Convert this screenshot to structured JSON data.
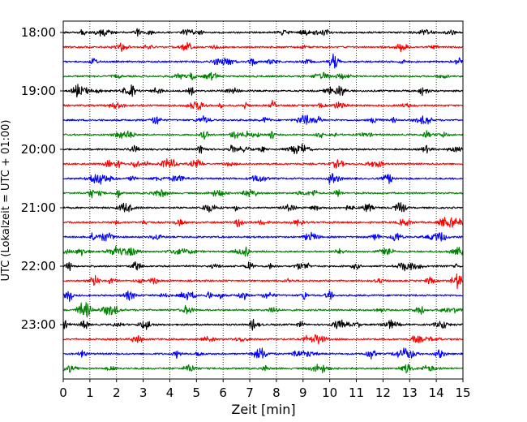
{
  "chart_data": {
    "type": "line",
    "title": "",
    "xlabel": "Zeit  [min]",
    "ylabel": "UTC (Lokalzeit = UTC + 01:00)",
    "xlim": [
      0,
      15
    ],
    "x_ticks": [
      0,
      1,
      2,
      3,
      4,
      5,
      6,
      7,
      8,
      9,
      10,
      11,
      12,
      13,
      14,
      15
    ],
    "x_tick_labels": [
      "0",
      "1",
      "2",
      "3",
      "4",
      "5",
      "6",
      "7",
      "8",
      "9",
      "10",
      "11",
      "12",
      "13",
      "14",
      "15"
    ],
    "y_tick_labels": [
      "18:00",
      "19:00",
      "20:00",
      "21:00",
      "22:00",
      "23:00"
    ],
    "y_tick_traces": [
      0,
      4,
      8,
      12,
      16,
      20
    ],
    "trace_count": 24,
    "trace_interval_min": 15,
    "trace_colors": [
      "#000000",
      "#ff0000",
      "#0000ff",
      "#008000"
    ],
    "grid": {
      "x": true,
      "y": false,
      "style": "dotted"
    },
    "series": [
      {
        "start": "18:00",
        "values": []
      },
      {
        "start": "18:15",
        "values": []
      },
      {
        "start": "18:30",
        "values": []
      },
      {
        "start": "18:45",
        "values": []
      },
      {
        "start": "19:00",
        "values": []
      },
      {
        "start": "19:15",
        "values": []
      },
      {
        "start": "19:30",
        "values": []
      },
      {
        "start": "19:45",
        "values": []
      },
      {
        "start": "20:00",
        "values": []
      },
      {
        "start": "20:15",
        "values": []
      },
      {
        "start": "20:30",
        "values": []
      },
      {
        "start": "20:45",
        "values": []
      },
      {
        "start": "21:00",
        "values": []
      },
      {
        "start": "21:15",
        "values": []
      },
      {
        "start": "21:30",
        "values": []
      },
      {
        "start": "21:45",
        "values": []
      },
      {
        "start": "22:00",
        "values": []
      },
      {
        "start": "22:15",
        "values": []
      },
      {
        "start": "22:30",
        "values": []
      },
      {
        "start": "22:45",
        "values": []
      },
      {
        "start": "23:00",
        "values": []
      },
      {
        "start": "23:15",
        "values": []
      },
      {
        "start": "23:30",
        "values": []
      },
      {
        "start": "23:45",
        "values": []
      }
    ]
  }
}
